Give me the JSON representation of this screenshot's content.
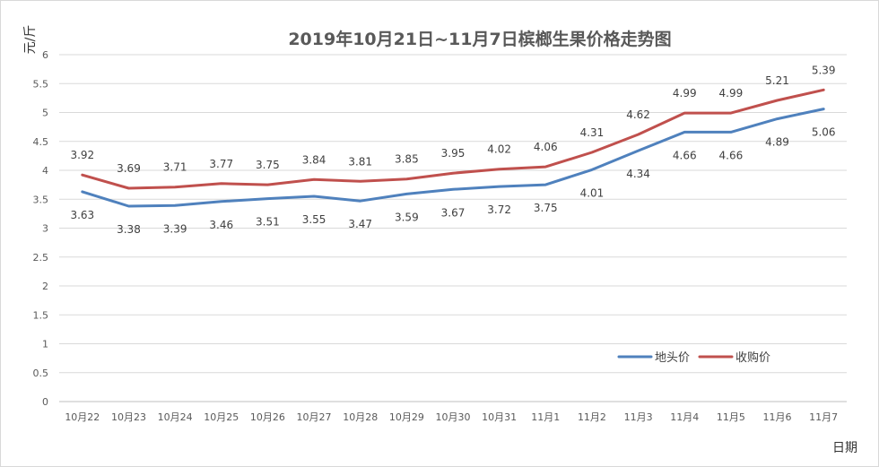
{
  "chart_data": {
    "type": "line",
    "title": "2019年10月21日~11月7日槟榔生果价格走势图",
    "xlabel": "日期",
    "ylabel": "元/斤",
    "ylim": [
      0,
      6
    ],
    "yticks": [
      "0",
      "0.5",
      "1",
      "1.5",
      "2",
      "2.5",
      "3",
      "3.5",
      "4",
      "4.5",
      "5",
      "5.5",
      "6"
    ],
    "grid": true,
    "legend_position": "bottom-right",
    "categories": [
      "10月22",
      "10月23",
      "10月24",
      "10月25",
      "10月26",
      "10月27",
      "10月28",
      "10月29",
      "10月30",
      "10月31",
      "11月1",
      "11月2",
      "11月3",
      "11月4",
      "11月5",
      "11月6",
      "11月7"
    ],
    "series": [
      {
        "name": "地头价",
        "color": "#4f81bd",
        "values": [
          3.63,
          3.38,
          3.39,
          3.46,
          3.51,
          3.55,
          3.47,
          3.59,
          3.67,
          3.72,
          3.75,
          4.01,
          4.34,
          4.66,
          4.66,
          4.89,
          5.06
        ],
        "labels": [
          "3.63",
          "3.38",
          "3.39",
          "3.46",
          "3.51",
          "3.55",
          "3.47",
          "3.59",
          "3.67",
          "3.72",
          "3.75",
          "4.01",
          "4.34",
          "4.66",
          "4.66",
          "4.89",
          "5.06"
        ]
      },
      {
        "name": "收购价",
        "color": "#c0504d",
        "values": [
          3.92,
          3.69,
          3.71,
          3.77,
          3.75,
          3.84,
          3.81,
          3.85,
          3.95,
          4.02,
          4.06,
          4.31,
          4.62,
          4.99,
          4.99,
          5.21,
          5.39
        ],
        "labels": [
          "3.92",
          "3.69",
          "3.71",
          "3.77",
          "3.75",
          "3.84",
          "3.81",
          "3.85",
          "3.95",
          "4.02",
          "4.06",
          "4.31",
          "4.62",
          "4.99",
          "4.99",
          "5.21",
          "5.39"
        ]
      }
    ]
  }
}
